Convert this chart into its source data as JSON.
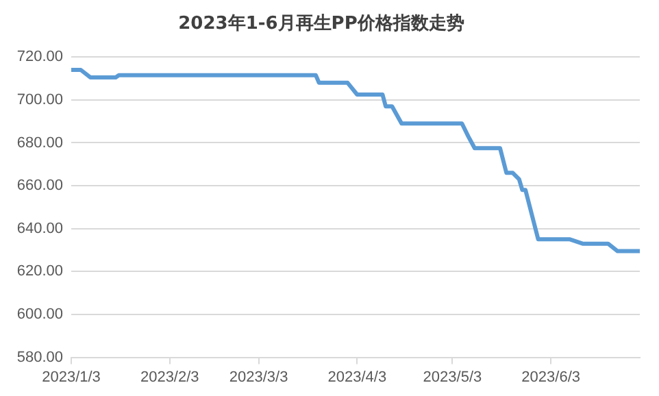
{
  "chart_data": {
    "type": "line",
    "title": "2023年1-6月再生PP价格指数走势",
    "x": [
      "2023-01-03",
      "2023-01-06",
      "2023-01-09",
      "2023-01-17",
      "2023-01-18",
      "2023-03-21",
      "2023-03-22",
      "2023-03-31",
      "2023-04-03",
      "2023-04-11",
      "2023-04-12",
      "2023-04-14",
      "2023-04-17",
      "2023-05-06",
      "2023-05-08",
      "2023-05-10",
      "2023-05-18",
      "2023-05-20",
      "2023-05-22",
      "2023-05-24",
      "2023-05-25",
      "2023-05-26",
      "2023-05-30",
      "2023-06-09",
      "2023-06-13",
      "2023-06-21",
      "2023-06-24",
      "2023-07-01"
    ],
    "series": [
      {
        "color": "#5b9bd5",
        "values": [
          714,
          714,
          710.5,
          710.5,
          711.5,
          711.5,
          708,
          708,
          702.5,
          702.5,
          697,
          697,
          689,
          689,
          683,
          677.5,
          677.5,
          666,
          666,
          663,
          658,
          658,
          635,
          635,
          633,
          633,
          629.5,
          629.5
        ]
      }
    ],
    "xlim": [
      "2023-01-03",
      "2023-07-01"
    ],
    "xticks": [
      {
        "value": "2023-01-03",
        "label": "2023/1/3"
      },
      {
        "value": "2023-02-03",
        "label": "2023/2/3"
      },
      {
        "value": "2023-03-03",
        "label": "2023/3/3"
      },
      {
        "value": "2023-04-03",
        "label": "2023/4/3"
      },
      {
        "value": "2023-05-03",
        "label": "2023/5/3"
      },
      {
        "value": "2023-06-03",
        "label": "2023/6/3"
      }
    ],
    "ylim": [
      580,
      720
    ],
    "yticks": [
      {
        "value": 580,
        "label": "580.00"
      },
      {
        "value": 600,
        "label": "600.00"
      },
      {
        "value": 620,
        "label": "620.00"
      },
      {
        "value": 640,
        "label": "640.00"
      },
      {
        "value": 660,
        "label": "660.00"
      },
      {
        "value": 680,
        "label": "680.00"
      },
      {
        "value": 700,
        "label": "700.00"
      },
      {
        "value": 720,
        "label": "720.00"
      }
    ],
    "grid": "y",
    "legend": false,
    "marker": "none",
    "line_style": "solid"
  }
}
